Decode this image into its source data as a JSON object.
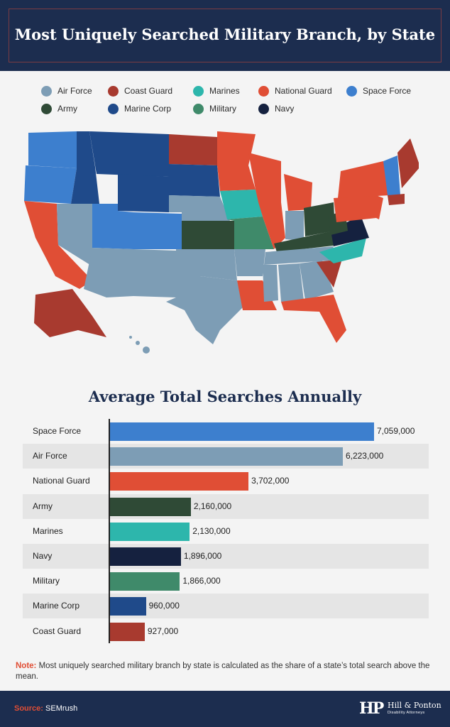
{
  "header": {
    "title": "Most Uniquely Searched Military Branch, by State"
  },
  "colors": {
    "air_force": "#7d9db5",
    "coast_guard": "#a83a2f",
    "marines": "#2db6ac",
    "national_guard": "#e04e35",
    "space_force": "#3d7fce",
    "army": "#2f4a36",
    "marine_corp": "#1f4a8a",
    "military": "#3f8a6a",
    "navy": "#15213f"
  },
  "legend": [
    {
      "label": "Air Force",
      "color": "#7d9db5"
    },
    {
      "label": "Coast Guard",
      "color": "#a83a2f"
    },
    {
      "label": "Marines",
      "color": "#2db6ac"
    },
    {
      "label": "National Guard",
      "color": "#e04e35"
    },
    {
      "label": "Space Force",
      "color": "#3d7fce"
    },
    {
      "label": "Army",
      "color": "#2f4a36"
    },
    {
      "label": "Marine Corp",
      "color": "#1f4a8a"
    },
    {
      "label": "Military",
      "color": "#3f8a6a"
    },
    {
      "label": "Navy",
      "color": "#15213f"
    }
  ],
  "chart_data": {
    "type": "bar",
    "orientation": "horizontal",
    "title": "Average Total Searches Annually",
    "categories": [
      "Space Force",
      "Air Force",
      "National Guard",
      "Army",
      "Marines",
      "Navy",
      "Military",
      "Marine Corp",
      "Coast Guard"
    ],
    "values": [
      7059000,
      6223000,
      3702000,
      2160000,
      2130000,
      1896000,
      1866000,
      960000,
      927000
    ],
    "value_labels": [
      "7,059,000",
      "6,223,000",
      "3,702,000",
      "2,160,000",
      "2,130,000",
      "1,896,000",
      "1,866,000",
      "960,000",
      "927,000"
    ],
    "bar_colors": [
      "#3d7fce",
      "#7d9db5",
      "#e04e35",
      "#2f4a36",
      "#2db6ac",
      "#15213f",
      "#3f8a6a",
      "#1f4a8a",
      "#a83a2f"
    ],
    "xlim": [
      0,
      7059000
    ],
    "grid": false
  },
  "note": {
    "label": "Note:",
    "text": " Most uniquely searched military branch by state is calculated as the share of a state’s total search above the mean."
  },
  "footer": {
    "source_label": "Source:",
    "source_text": " SEMrush",
    "logo_mark": "HP",
    "logo_name": "Hill & Ponton",
    "logo_sub": "Disability Attorneys"
  }
}
